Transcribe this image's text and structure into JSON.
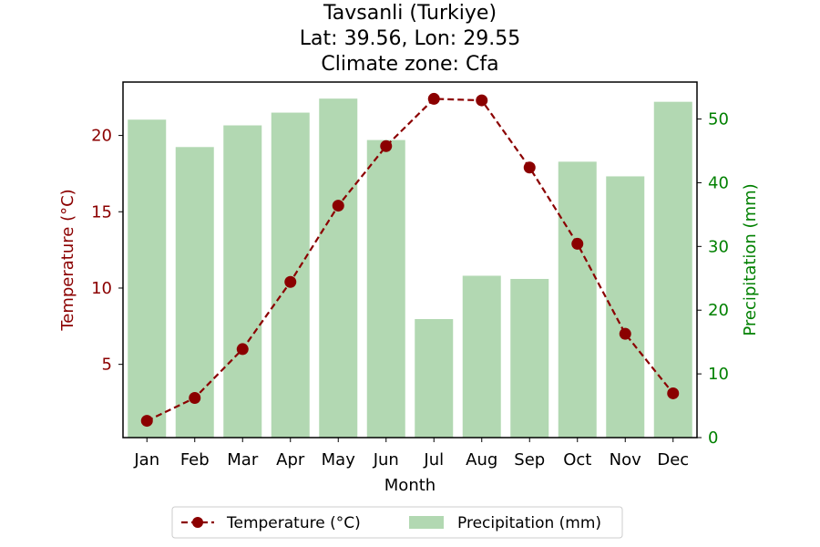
{
  "chart_data": {
    "type": "bar+line",
    "title_lines": [
      "Tavsanli (Turkiye)",
      "Lat: 39.56, Lon: 29.55",
      "Climate zone: Cfa"
    ],
    "xlabel": "Month",
    "categories": [
      "Jan",
      "Feb",
      "Mar",
      "Apr",
      "May",
      "Jun",
      "Jul",
      "Aug",
      "Sep",
      "Oct",
      "Nov",
      "Dec"
    ],
    "temperature": {
      "name": "Temperature (°C)",
      "axis_label": "Temperature (°C)",
      "color": "#8b0000",
      "values": [
        1.3,
        2.8,
        6.0,
        10.4,
        15.4,
        19.3,
        22.4,
        22.3,
        17.9,
        12.9,
        7.0,
        3.1
      ],
      "ylim": [
        0.2,
        23.5
      ],
      "ticks": [
        5,
        10,
        15,
        20
      ]
    },
    "precipitation": {
      "name": "Precipitation (mm)",
      "axis_label": "Precipitation (mm)",
      "color": "#b2d8b2",
      "label_color": "#008000",
      "values": [
        49.9,
        45.6,
        49.0,
        51.0,
        53.2,
        46.7,
        18.6,
        25.4,
        24.9,
        43.3,
        41.0,
        52.7
      ],
      "ylim": [
        0,
        55.8
      ],
      "ticks": [
        0,
        10,
        20,
        30,
        40,
        50
      ]
    },
    "legend_position": "bottom-center"
  }
}
